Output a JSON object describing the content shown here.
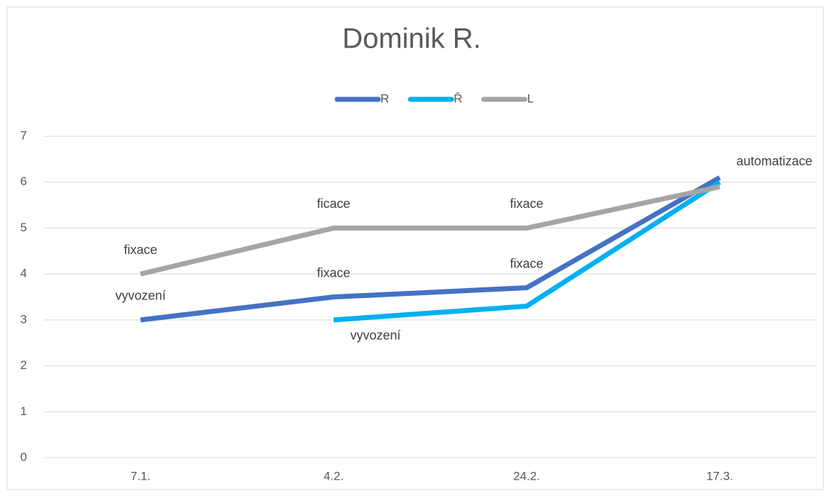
{
  "chart_data": {
    "type": "line",
    "title": "Dominik R.",
    "categories": [
      "7.1.",
      "4.2.",
      "24.2.",
      "17.3."
    ],
    "series": [
      {
        "name": "R",
        "color": "#4472c4",
        "values": [
          3,
          3.5,
          3.7,
          6.1
        ],
        "point_labels": [
          "vyvození",
          "fixace",
          "fixace",
          "automatizace"
        ]
      },
      {
        "name": "Ř",
        "color": "#00b0f0",
        "values": [
          null,
          3,
          3.3,
          6.0
        ],
        "point_labels": [
          null,
          "vyvození",
          null,
          null
        ]
      },
      {
        "name": "L",
        "color": "#a5a5a5",
        "values": [
          4,
          5,
          5,
          5.9
        ],
        "point_labels": [
          "fixace",
          "ficace",
          "fixace",
          null
        ]
      }
    ],
    "ylim": [
      0,
      7
    ],
    "yticks": [
      0,
      1,
      2,
      3,
      4,
      5,
      6,
      7
    ],
    "grid": true,
    "legend": "top"
  }
}
